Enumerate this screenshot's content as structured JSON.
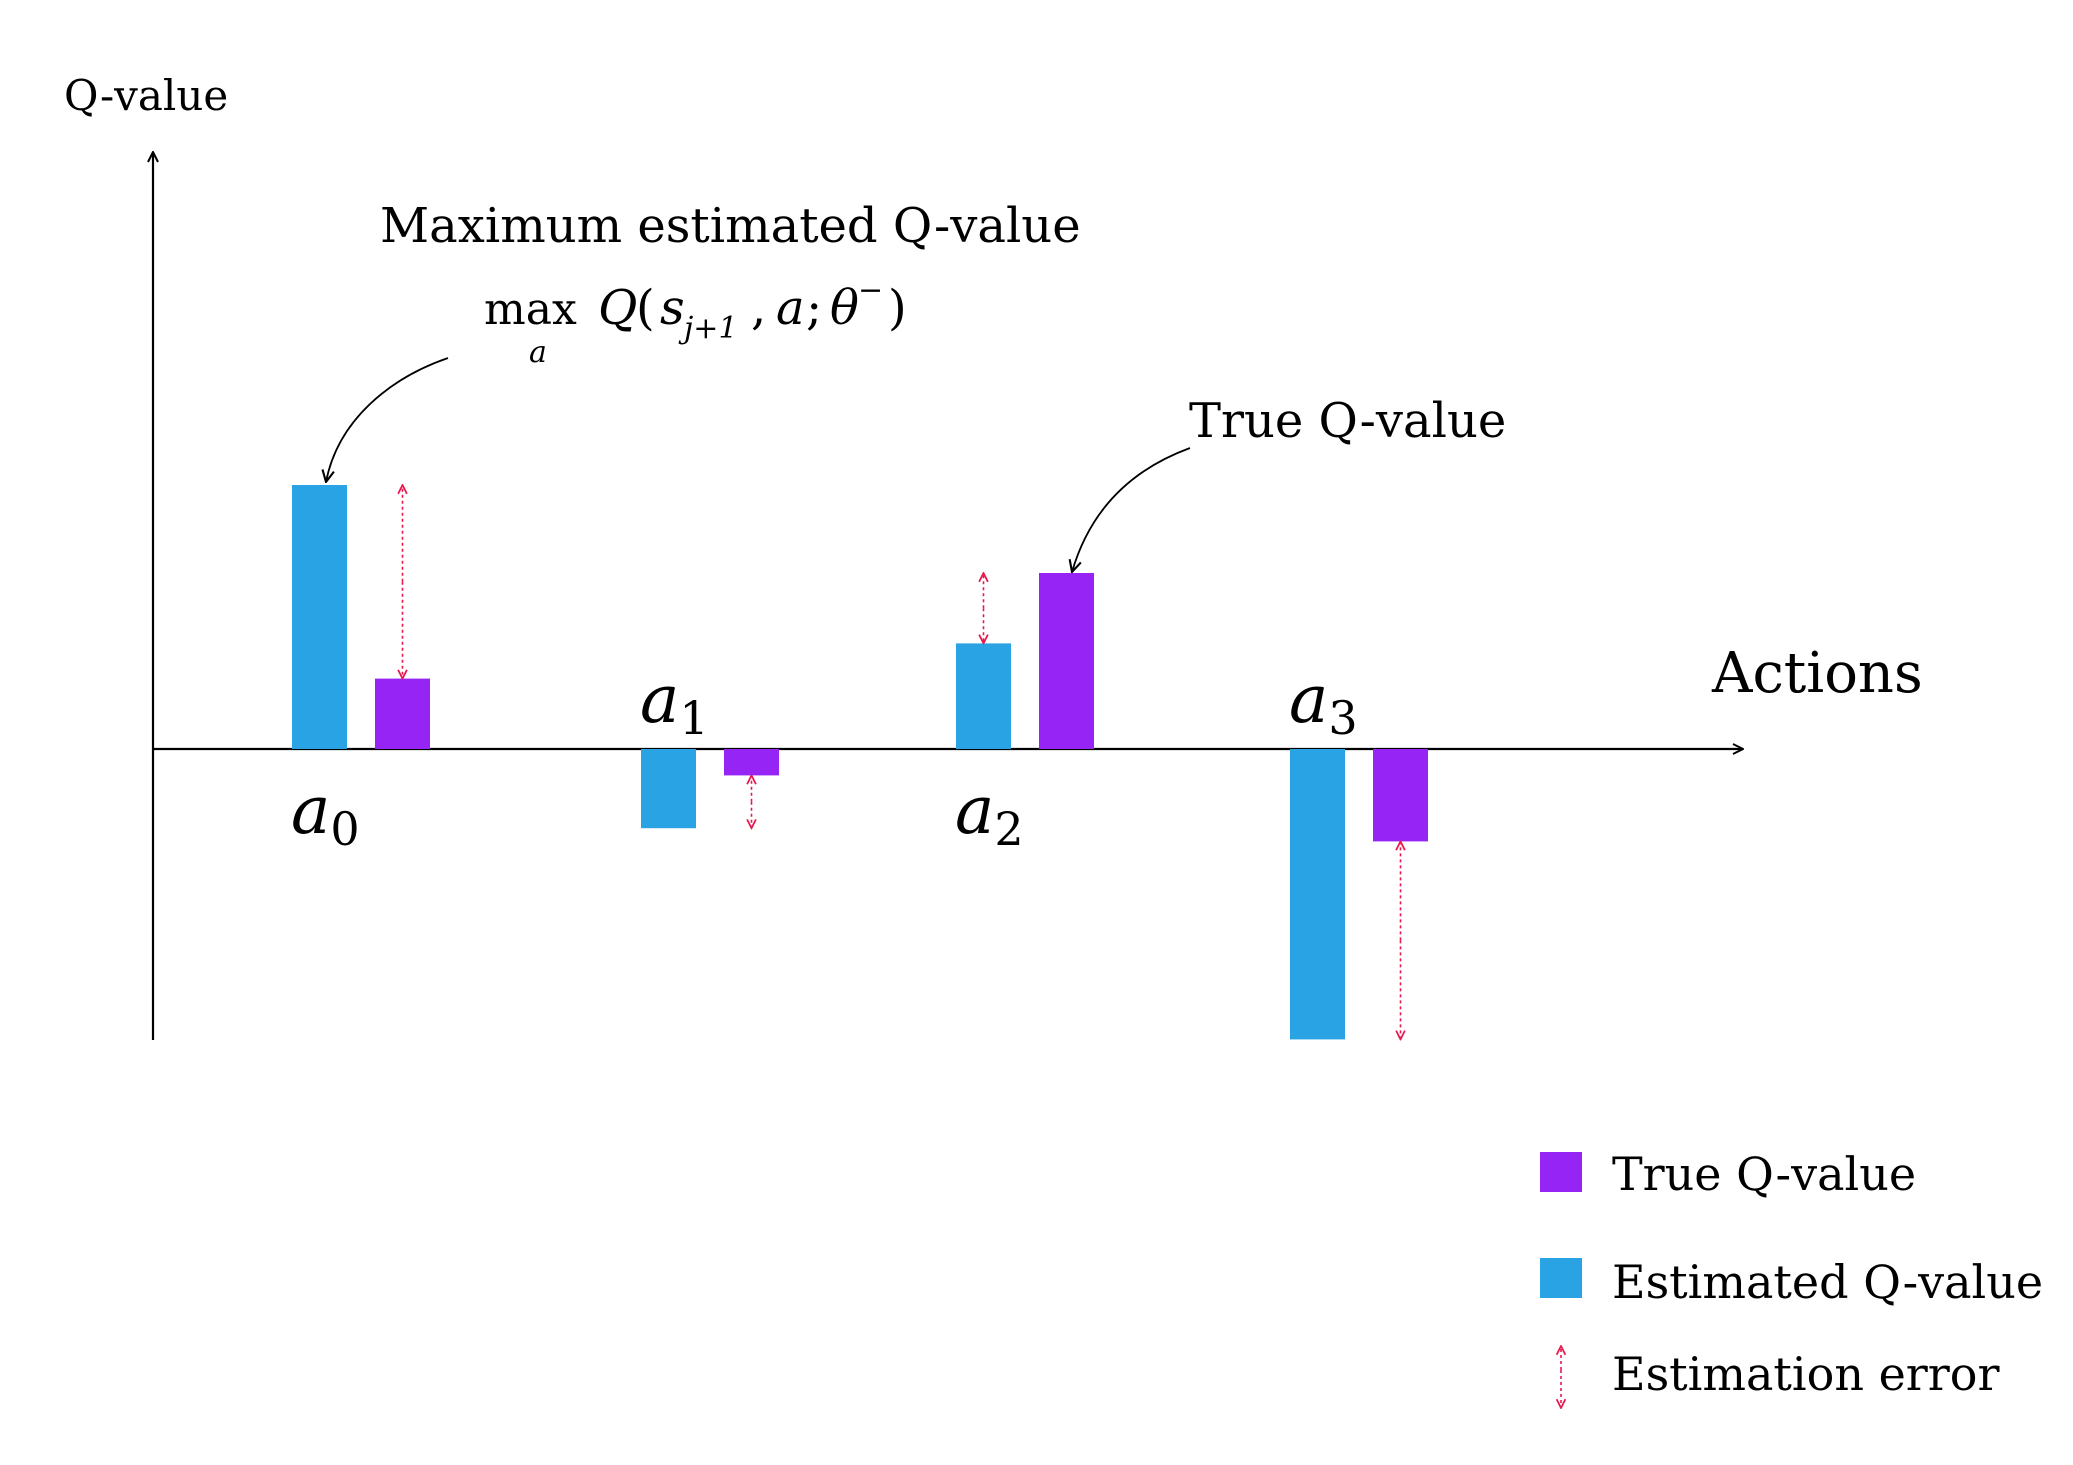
{
  "chart_data": {
    "type": "bar",
    "ylabel": "Q-value",
    "xlabel": "Actions",
    "categories": [
      {
        "base": "a",
        "sub": "0"
      },
      {
        "base": "a",
        "sub": "1"
      },
      {
        "base": "a",
        "sub": "2"
      },
      {
        "base": "a",
        "sub": "3"
      }
    ],
    "series": [
      {
        "name": "Estimated Q-value",
        "color": "#29a3e3",
        "values": [
          3.0,
          -0.9,
          1.2,
          -3.3
        ]
      },
      {
        "name": "True Q-value",
        "color": "#9524f5",
        "values": [
          0.8,
          -0.3,
          2.0,
          -1.05
        ]
      }
    ],
    "ylim": [
      -3.3,
      4.7
    ],
    "grid": false,
    "legend_position": "bottom-right",
    "error_color": "#e8194f",
    "legend": {
      "true_label": "True Q-value",
      "estimated_label": "Estimated Q-value",
      "error_label": "Estimation error"
    },
    "annotations": {
      "max_title": "Maximum estimated Q-value",
      "max_formula": {
        "op": "max",
        "op_sub": "a",
        "q": "Q",
        "s": "s",
        "s_sub": "j+1",
        "a": "a",
        "theta": "θ",
        "theta_sup": "−"
      },
      "true_label": "True Q-value"
    }
  }
}
